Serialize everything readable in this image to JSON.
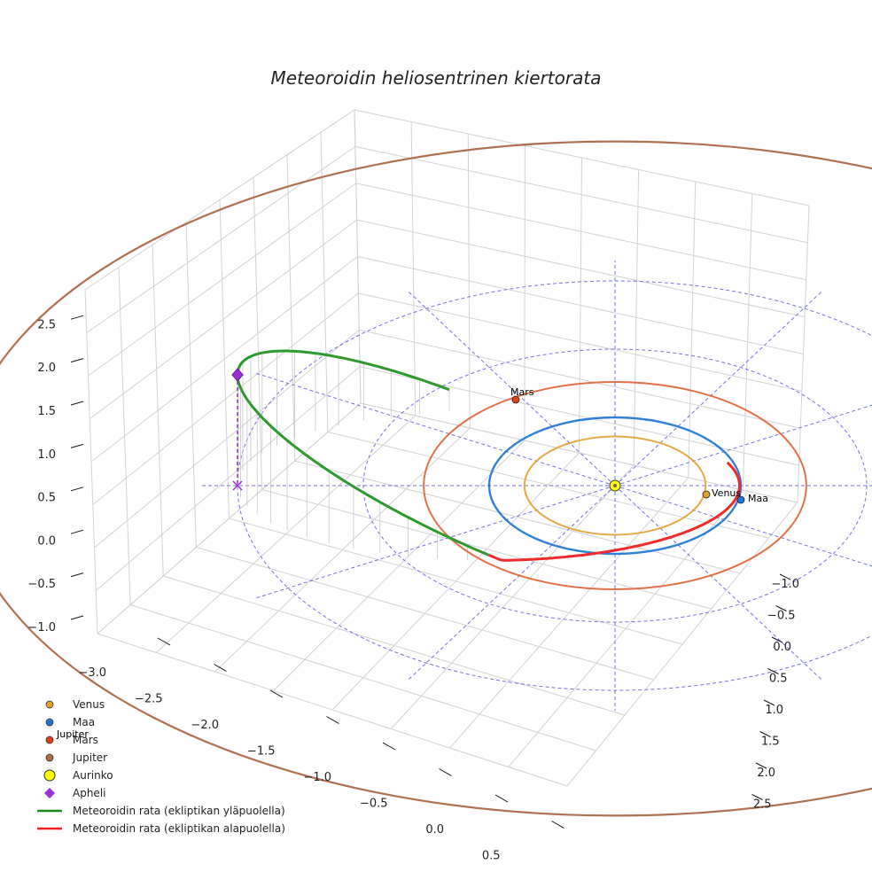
{
  "chart_data": {
    "type": "3d-line",
    "title": "Meteoroidin heliosentrinen kiertorata",
    "x_ticks": [
      "−3.0",
      "−2.5",
      "−2.0",
      "−1.5",
      "−1.0",
      "−0.5",
      "0.0",
      "0.5"
    ],
    "y_ticks": [
      "−1.0",
      "−0.5",
      "0.0",
      "0.5",
      "1.0",
      "1.5",
      "2.0",
      "2.5"
    ],
    "z_ticks": [
      "−1.0",
      "−0.5",
      "0.0",
      "0.5",
      "1.0",
      "1.5",
      "2.0",
      "2.5"
    ],
    "xlim": [
      -3.2,
      0.8
    ],
    "ylim": [
      -1.3,
      2.7
    ],
    "zlim": [
      -1.1,
      2.8
    ],
    "orbits": [
      {
        "name": "Venus",
        "radius_au": 0.72,
        "color": "#e0a030"
      },
      {
        "name": "Maa",
        "radius_au": 1.0,
        "color": "#1f77d4"
      },
      {
        "name": "Mars",
        "radius_au": 1.52,
        "color": "#e06030"
      },
      {
        "name": "Jupiter",
        "radius_au": 5.2,
        "color": "#b07050"
      }
    ],
    "meteoroid": {
      "perihelion_au": 0.99,
      "aphelion_au": 3.0,
      "max_height_au": 2.1,
      "above_color": "#2e9a2e",
      "below_color": "#ee2a2a"
    },
    "labels": [
      "Mars",
      "Venus",
      "Maa",
      "Jupiter"
    ],
    "legend": [
      {
        "label": "Venus",
        "marker": "dot",
        "color": "#e0a030"
      },
      {
        "label": "Maa",
        "marker": "dot",
        "color": "#1f77d4"
      },
      {
        "label": "Mars",
        "marker": "dot",
        "color": "#e04020"
      },
      {
        "label": "Jupiter",
        "marker": "dot",
        "color": "#b06a40"
      },
      {
        "label": "Aurinko",
        "marker": "sun",
        "color": "#ffff00"
      },
      {
        "label": "Apheli",
        "marker": "diamond",
        "color": "#9b2fd4"
      },
      {
        "label": "Meteoroidin rata (ekliptikan yläpuolella)",
        "marker": "line",
        "color": "#1a8a1a"
      },
      {
        "label": "Meteoroidin rata (ekliptikan alapuolella)",
        "marker": "line",
        "color": "#ee2020"
      }
    ],
    "legend_location": "bottom-left"
  }
}
